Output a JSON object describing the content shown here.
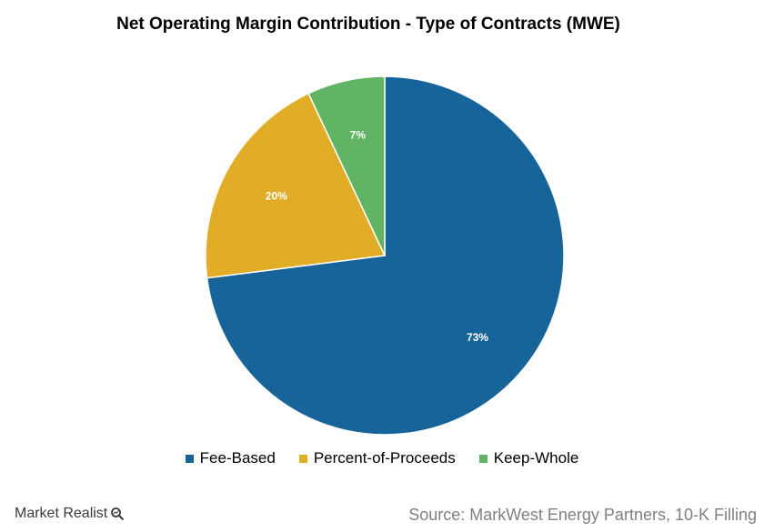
{
  "chart_data": {
    "type": "pie",
    "title": "Net Operating Margin Contribution - Type of Contracts (MWE)",
    "slices": [
      {
        "label": "Fee-Based",
        "value": 73,
        "display": "73%",
        "color": "#166499"
      },
      {
        "label": "Percent-of-Proceeds",
        "value": 20,
        "display": "20%",
        "color": "#e2ad26"
      },
      {
        "label": "Keep-Whole",
        "value": 7,
        "display": "7%",
        "color": "#60b463"
      }
    ],
    "legend_position": "bottom"
  },
  "footer": {
    "brand": "Market Realist",
    "brand_icon": "magnifier-icon",
    "source": "Source: MarkWest Energy Partners, 10-K Filling"
  }
}
